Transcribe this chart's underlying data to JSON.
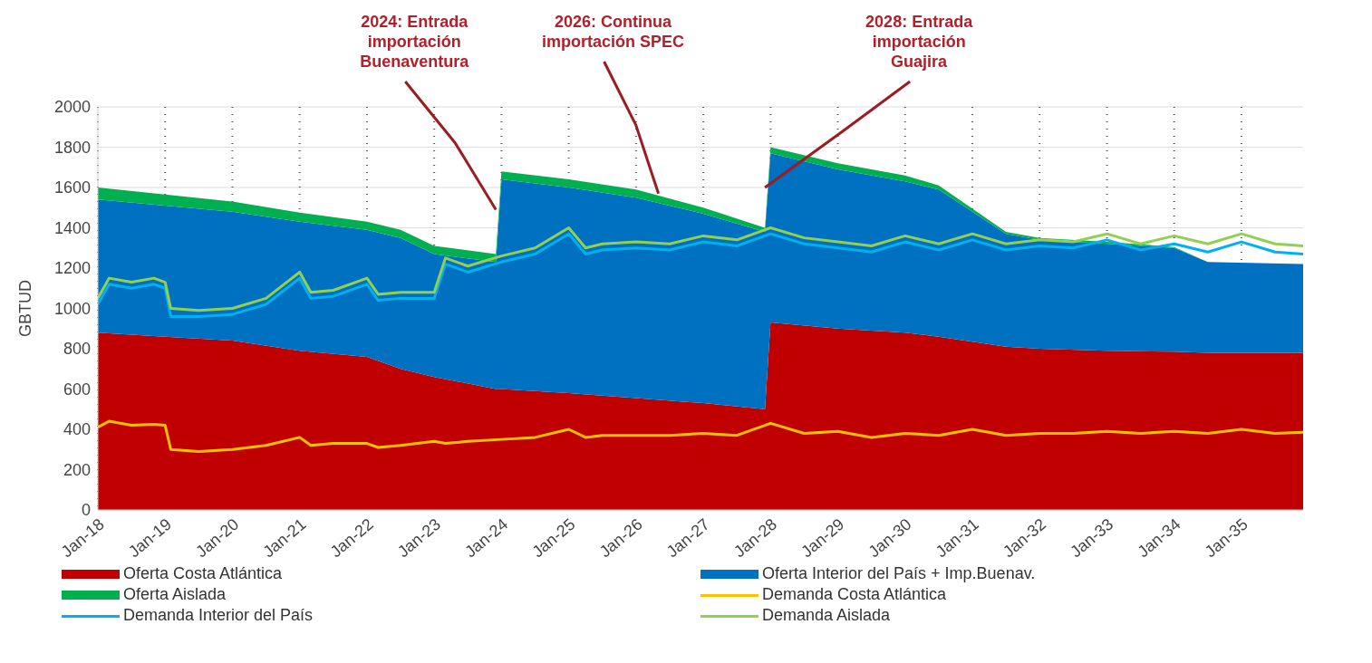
{
  "chart_data": {
    "type": "area",
    "stacked": true,
    "ylabel": "GBTUD",
    "x": [
      "2018-01",
      "2019-01",
      "2020-01",
      "2021-01",
      "2022-01",
      "2022-07",
      "2023-01",
      "2023-12",
      "2024-01",
      "2025-01",
      "2026-01",
      "2027-01",
      "2027-12",
      "2028-01",
      "2029-01",
      "2030-01",
      "2030-07",
      "2031-07",
      "2032-01",
      "2033-01",
      "2034-01",
      "2034-07",
      "2035-12"
    ],
    "series": [
      {
        "name": "Oferta Costa Atlántica",
        "color": "#c00000",
        "values": [
          880,
          860,
          840,
          790,
          760,
          700,
          660,
          600,
          600,
          580,
          555,
          530,
          500,
          930,
          900,
          880,
          860,
          810,
          800,
          790,
          785,
          780,
          780
        ]
      },
      {
        "name": "Oferta Interior del País + Imp.Buenav.",
        "color": "#0070c0",
        "values": [
          660,
          650,
          640,
          640,
          630,
          650,
          610,
          630,
          1040,
          1020,
          995,
          940,
          880,
          840,
          790,
          750,
          730,
          560,
          540,
          530,
          515,
          450,
          440
        ]
      },
      {
        "name": "Oferta Aislada",
        "color": "#00b050",
        "values": [
          60,
          55,
          50,
          45,
          40,
          40,
          40,
          40,
          40,
          40,
          40,
          30,
          20,
          30,
          30,
          30,
          20,
          10,
          10,
          10,
          5,
          0,
          0
        ]
      },
      {
        "name": "Demanda Costa Atlántica",
        "type": "line",
        "color": "#ffc000",
        "x": [
          "2018-01",
          "2018-03",
          "2018-07",
          "2018-11",
          "2019-01",
          "2019-02",
          "2019-07",
          "2020-01",
          "2020-07",
          "2021-01",
          "2021-03",
          "2021-07",
          "2022-01",
          "2022-03",
          "2022-07",
          "2023-01",
          "2023-03",
          "2023-07",
          "2024-01",
          "2024-07",
          "2025-01",
          "2025-04",
          "2025-07",
          "2026-01",
          "2026-07",
          "2027-01",
          "2027-07",
          "2028-01",
          "2028-07",
          "2029-01",
          "2029-07",
          "2030-01",
          "2030-07",
          "2031-01",
          "2031-07",
          "2032-01",
          "2032-07",
          "2033-01",
          "2033-07",
          "2034-01",
          "2034-07",
          "2035-01",
          "2035-07",
          "2035-12"
        ],
        "values": [
          410,
          440,
          420,
          425,
          420,
          300,
          290,
          300,
          320,
          360,
          320,
          330,
          330,
          310,
          320,
          340,
          330,
          340,
          350,
          360,
          400,
          360,
          370,
          370,
          370,
          380,
          370,
          430,
          380,
          390,
          360,
          380,
          370,
          400,
          370,
          380,
          380,
          390,
          380,
          390,
          380,
          400,
          380,
          385
        ]
      },
      {
        "name": "Demanda Interior del País",
        "type": "line",
        "color": "#00b0f0",
        "x": [
          "2018-01",
          "2018-03",
          "2018-07",
          "2018-11",
          "2019-01",
          "2019-02",
          "2019-07",
          "2020-01",
          "2020-07",
          "2021-01",
          "2021-03",
          "2021-07",
          "2022-01",
          "2022-03",
          "2022-07",
          "2023-01",
          "2023-03",
          "2023-07",
          "2024-01",
          "2024-07",
          "2025-01",
          "2025-04",
          "2025-07",
          "2026-01",
          "2026-07",
          "2027-01",
          "2027-07",
          "2028-01",
          "2028-07",
          "2029-01",
          "2029-07",
          "2030-01",
          "2030-07",
          "2031-01",
          "2031-07",
          "2032-01",
          "2032-07",
          "2033-01",
          "2033-07",
          "2034-01",
          "2034-07",
          "2035-01",
          "2035-07",
          "2035-12"
        ],
        "values": [
          1020,
          1120,
          1100,
          1120,
          1100,
          960,
          960,
          970,
          1020,
          1150,
          1050,
          1060,
          1120,
          1040,
          1050,
          1050,
          1220,
          1180,
          1230,
          1270,
          1370,
          1270,
          1290,
          1300,
          1290,
          1330,
          1310,
          1370,
          1320,
          1300,
          1280,
          1330,
          1290,
          1340,
          1290,
          1310,
          1300,
          1340,
          1290,
          1320,
          1280,
          1330,
          1280,
          1270
        ]
      },
      {
        "name": "Demanda Aislada",
        "type": "line",
        "color": "#92d050",
        "x": [
          "2018-01",
          "2018-03",
          "2018-07",
          "2018-11",
          "2019-01",
          "2019-02",
          "2019-07",
          "2020-01",
          "2020-07",
          "2021-01",
          "2021-03",
          "2021-07",
          "2022-01",
          "2022-03",
          "2022-07",
          "2023-01",
          "2023-03",
          "2023-07",
          "2024-01",
          "2024-07",
          "2025-01",
          "2025-04",
          "2025-07",
          "2026-01",
          "2026-07",
          "2027-01",
          "2027-07",
          "2028-01",
          "2028-07",
          "2029-01",
          "2029-07",
          "2030-01",
          "2030-07",
          "2031-01",
          "2031-07",
          "2032-01",
          "2032-07",
          "2033-01",
          "2033-07",
          "2034-01",
          "2034-07",
          "2035-01",
          "2035-07",
          "2035-12"
        ],
        "values": [
          1050,
          1150,
          1130,
          1150,
          1130,
          1000,
          990,
          1000,
          1050,
          1180,
          1080,
          1090,
          1150,
          1070,
          1080,
          1080,
          1250,
          1210,
          1260,
          1300,
          1400,
          1300,
          1320,
          1330,
          1320,
          1360,
          1340,
          1400,
          1350,
          1330,
          1310,
          1360,
          1320,
          1370,
          1320,
          1340,
          1330,
          1370,
          1320,
          1360,
          1320,
          1370,
          1320,
          1310
        ]
      }
    ],
    "xlim": [
      "2018-01",
      "2035-12"
    ],
    "xticks": [
      {
        "value": "2018-01",
        "label": "Jan-18"
      },
      {
        "value": "2019-01",
        "label": "Jan-19"
      },
      {
        "value": "2020-01",
        "label": "Jan-20"
      },
      {
        "value": "2021-01",
        "label": "Jan-21"
      },
      {
        "value": "2022-01",
        "label": "Jan-22"
      },
      {
        "value": "2023-01",
        "label": "Jan-23"
      },
      {
        "value": "2024-01",
        "label": "Jan-24"
      },
      {
        "value": "2025-01",
        "label": "Jan-25"
      },
      {
        "value": "2026-01",
        "label": "Jan-26"
      },
      {
        "value": "2027-01",
        "label": "Jan-27"
      },
      {
        "value": "2028-01",
        "label": "Jan-28"
      },
      {
        "value": "2029-01",
        "label": "Jan-29"
      },
      {
        "value": "2030-01",
        "label": "Jan-30"
      },
      {
        "value": "2031-01",
        "label": "Jan-31"
      },
      {
        "value": "2032-01",
        "label": "Jan-32"
      },
      {
        "value": "2033-01",
        "label": "Jan-33"
      },
      {
        "value": "2034-01",
        "label": "Jan-34"
      },
      {
        "value": "2035-01",
        "label": "Jan-35"
      }
    ],
    "ylim": [
      0,
      2000
    ],
    "yticks": [
      0,
      200,
      400,
      600,
      800,
      1000,
      1200,
      1400,
      1600,
      1800,
      2000
    ],
    "grid": true,
    "legend": "bottom",
    "annotations": [
      {
        "text": "2024: Entrada importación Buenaventura",
        "x": "2023-12",
        "y": 1490
      },
      {
        "text": "2026: Continua importación SPEC",
        "x": "2026-05",
        "y": 1570
      },
      {
        "text": "2028: Entrada importación Guajira",
        "x": "2027-12",
        "y": 1600
      }
    ]
  }
}
